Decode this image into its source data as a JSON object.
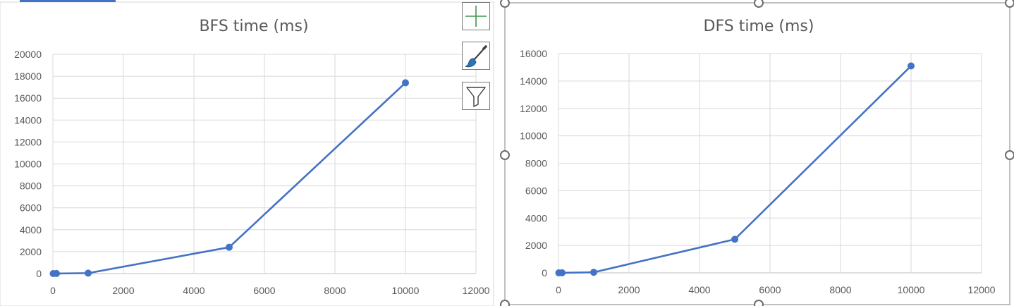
{
  "colors": {
    "series": "#4472C4",
    "grid": "#d9d9d9",
    "axis": "#bfbfbf",
    "text": "#595959",
    "selection_frame": "#808080",
    "selection_top_tab": "#4472C4",
    "add_element_icon": "#3a9a48",
    "brush_icon": "#2e75b6"
  },
  "chart_elements_button": {
    "icon": "plus-icon"
  },
  "chart_styles_button": {
    "icon": "paintbrush-icon"
  },
  "chart_filters_button": {
    "icon": "funnel-icon"
  },
  "chart_data": [
    {
      "type": "scatter",
      "mode": "lines+markers",
      "title": "BFS time (ms)",
      "xlim": [
        0,
        12000
      ],
      "ylim": [
        0,
        20000
      ],
      "xticks": [
        0,
        2000,
        4000,
        6000,
        8000,
        10000,
        12000
      ],
      "yticks": [
        0,
        2000,
        4000,
        6000,
        8000,
        10000,
        12000,
        14000,
        16000,
        18000,
        20000
      ],
      "xtick_labels": [
        "0",
        "2000",
        "4000",
        "6000",
        "8000",
        "10000",
        "12000"
      ],
      "ytick_labels": [
        "0",
        "2000",
        "4000",
        "6000",
        "8000",
        "10000",
        "12000",
        "14000",
        "16000",
        "18000",
        "20000"
      ],
      "grid": true,
      "legend": "none",
      "series": [
        {
          "x": [
            10,
            100,
            1000,
            5000,
            10000
          ],
          "y": [
            0,
            5,
            40,
            2400,
            17400
          ]
        }
      ]
    },
    {
      "type": "scatter",
      "mode": "lines+markers",
      "title": "DFS time (ms)",
      "xlim": [
        0,
        12000
      ],
      "ylim": [
        0,
        16000
      ],
      "xticks": [
        0,
        2000,
        4000,
        6000,
        8000,
        10000,
        12000
      ],
      "yticks": [
        0,
        2000,
        4000,
        6000,
        8000,
        10000,
        12000,
        14000,
        16000
      ],
      "xtick_labels": [
        "0",
        "2000",
        "4000",
        "6000",
        "8000",
        "10000",
        "12000"
      ],
      "ytick_labels": [
        "0",
        "2000",
        "4000",
        "6000",
        "8000",
        "10000",
        "12000",
        "14000",
        "16000"
      ],
      "grid": true,
      "legend": "none",
      "series": [
        {
          "x": [
            10,
            100,
            1000,
            5000,
            10000
          ],
          "y": [
            0,
            5,
            40,
            2450,
            15100
          ]
        }
      ]
    }
  ]
}
